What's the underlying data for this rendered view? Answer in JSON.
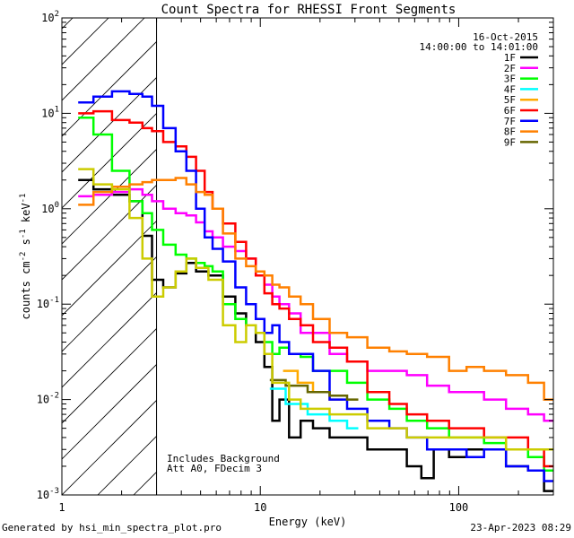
{
  "chart_data": {
    "type": "line",
    "title": "Count Spectra for RHESSI Front Segments",
    "xlabel": "Energy (keV)",
    "ylabel_main": "counts cm",
    "ylabel_units": [
      "-2",
      " s",
      "-1",
      " keV",
      "-1"
    ],
    "xscale": "log",
    "yscale": "log",
    "xlim": [
      1,
      300
    ],
    "ylim": [
      0.001,
      100
    ],
    "x_ticks": [
      {
        "value": 1,
        "label": "1"
      },
      {
        "value": 10,
        "label": "10"
      },
      {
        "value": 100,
        "label": "100"
      }
    ],
    "y_ticks": [
      {
        "value": 0.001,
        "base": "10",
        "exp": "-3"
      },
      {
        "value": 0.01,
        "base": "10",
        "exp": "-2"
      },
      {
        "value": 0.1,
        "base": "10",
        "exp": "-1"
      },
      {
        "value": 1,
        "base": "10",
        "exp": "0"
      },
      {
        "value": 10,
        "base": "10",
        "exp": "1"
      },
      {
        "value": 100,
        "base": "10",
        "exp": "2"
      }
    ],
    "date": "16-Oct-2015",
    "time_range": "14:00:00 to 14:01:00",
    "excluded_region_upper_keV": 3,
    "annotations": [
      "Includes Background",
      "Att A0, FDecim 3"
    ],
    "series": [
      {
        "name": "1F",
        "color": "#000000",
        "points": [
          [
            1.3,
            2.0
          ],
          [
            1.6,
            1.6
          ],
          [
            2.0,
            1.4
          ],
          [
            2.4,
            1.2
          ],
          [
            2.7,
            0.52
          ],
          [
            3.0,
            0.18
          ],
          [
            3.5,
            0.15
          ],
          [
            4.0,
            0.21
          ],
          [
            4.5,
            0.27
          ],
          [
            5.0,
            0.22
          ],
          [
            6.0,
            0.2
          ],
          [
            7.0,
            0.12
          ],
          [
            8.0,
            0.08
          ],
          [
            9.0,
            0.06
          ],
          [
            10,
            0.04
          ],
          [
            11,
            0.022
          ],
          [
            12,
            0.006
          ],
          [
            13,
            0.01
          ],
          [
            15,
            0.004
          ],
          [
            17,
            0.006
          ],
          [
            20,
            0.005
          ],
          [
            25,
            0.004
          ],
          [
            30,
            0.004
          ],
          [
            40,
            0.003
          ],
          [
            50,
            0.003
          ],
          [
            60,
            0.002
          ],
          [
            70,
            0.0015
          ],
          [
            80,
            0.003
          ],
          [
            100,
            0.0025
          ],
          [
            120,
            0.003
          ],
          [
            150,
            0.003
          ],
          [
            200,
            0.002
          ],
          [
            250,
            0.0018
          ],
          [
            290,
            0.0011
          ]
        ]
      },
      {
        "name": "2F",
        "color": "#ff00ff",
        "points": [
          [
            1.3,
            1.35
          ],
          [
            1.6,
            1.4
          ],
          [
            2.0,
            1.5
          ],
          [
            2.4,
            1.6
          ],
          [
            2.7,
            1.4
          ],
          [
            3.0,
            1.2
          ],
          [
            3.5,
            1.0
          ],
          [
            4.0,
            0.9
          ],
          [
            4.5,
            0.85
          ],
          [
            5.0,
            0.72
          ],
          [
            5.5,
            0.58
          ],
          [
            6.0,
            0.5
          ],
          [
            7.0,
            0.4
          ],
          [
            8.0,
            0.36
          ],
          [
            9.0,
            0.3
          ],
          [
            10,
            0.2
          ],
          [
            11,
            0.16
          ],
          [
            12,
            0.12
          ],
          [
            13,
            0.1
          ],
          [
            15,
            0.08
          ],
          [
            17,
            0.05
          ],
          [
            20,
            0.05
          ],
          [
            25,
            0.03
          ],
          [
            30,
            0.025
          ],
          [
            40,
            0.02
          ],
          [
            50,
            0.02
          ],
          [
            60,
            0.018
          ],
          [
            80,
            0.014
          ],
          [
            100,
            0.012
          ],
          [
            120,
            0.012
          ],
          [
            150,
            0.01
          ],
          [
            200,
            0.008
          ],
          [
            250,
            0.007
          ],
          [
            290,
            0.006
          ]
        ]
      },
      {
        "name": "3F",
        "color": "#00ff00",
        "points": [
          [
            1.3,
            9.0
          ],
          [
            1.6,
            6.0
          ],
          [
            2.0,
            2.5
          ],
          [
            2.4,
            1.2
          ],
          [
            2.7,
            0.9
          ],
          [
            3.0,
            0.6
          ],
          [
            3.5,
            0.42
          ],
          [
            4.0,
            0.33
          ],
          [
            4.5,
            0.3
          ],
          [
            5.0,
            0.27
          ],
          [
            5.5,
            0.25
          ],
          [
            6.0,
            0.22
          ],
          [
            7.0,
            0.1
          ],
          [
            8.0,
            0.07
          ],
          [
            9.0,
            0.06
          ],
          [
            10,
            0.05
          ],
          [
            11,
            0.04
          ],
          [
            12,
            0.03
          ],
          [
            13,
            0.035
          ],
          [
            15,
            0.03
          ],
          [
            17,
            0.028
          ],
          [
            20,
            0.02
          ],
          [
            25,
            0.02
          ],
          [
            30,
            0.015
          ],
          [
            40,
            0.01
          ],
          [
            50,
            0.008
          ],
          [
            60,
            0.006
          ],
          [
            80,
            0.005
          ],
          [
            100,
            0.004
          ],
          [
            120,
            0.004
          ],
          [
            150,
            0.0035
          ],
          [
            200,
            0.003
          ],
          [
            250,
            0.0025
          ],
          [
            290,
            0.0018
          ]
        ]
      },
      {
        "name": "4F",
        "color": "#00ffff",
        "points": [
          [
            12,
            0.013
          ],
          [
            15,
            0.009
          ],
          [
            20,
            0.007
          ],
          [
            25,
            0.006
          ],
          [
            30,
            0.005
          ]
        ]
      },
      {
        "name": "5F",
        "color": "#ffaa00",
        "points": [
          [
            14,
            0.02
          ],
          [
            17,
            0.015
          ],
          [
            20,
            0.012
          ],
          [
            25,
            0.01
          ]
        ]
      },
      {
        "name": "6F",
        "color": "#ff0000",
        "points": [
          [
            1.3,
            10.0
          ],
          [
            1.6,
            10.5
          ],
          [
            2.0,
            8.5
          ],
          [
            2.4,
            8.0
          ],
          [
            2.7,
            7.0
          ],
          [
            3.0,
            6.5
          ],
          [
            3.5,
            5.0
          ],
          [
            4.0,
            4.5
          ],
          [
            4.5,
            3.5
          ],
          [
            5.0,
            2.5
          ],
          [
            5.5,
            1.5
          ],
          [
            6.0,
            1.0
          ],
          [
            7.0,
            0.7
          ],
          [
            8.0,
            0.45
          ],
          [
            9.0,
            0.3
          ],
          [
            10,
            0.2
          ],
          [
            11,
            0.13
          ],
          [
            12,
            0.1
          ],
          [
            13,
            0.09
          ],
          [
            15,
            0.07
          ],
          [
            17,
            0.06
          ],
          [
            20,
            0.04
          ],
          [
            25,
            0.035
          ],
          [
            30,
            0.025
          ],
          [
            40,
            0.012
          ],
          [
            50,
            0.009
          ],
          [
            60,
            0.007
          ],
          [
            80,
            0.006
          ],
          [
            100,
            0.005
          ],
          [
            120,
            0.005
          ],
          [
            150,
            0.004
          ],
          [
            200,
            0.004
          ],
          [
            250,
            0.003
          ],
          [
            290,
            0.002
          ]
        ]
      },
      {
        "name": "7F",
        "color": "#0000ff",
        "points": [
          [
            1.3,
            13.0
          ],
          [
            1.6,
            15.0
          ],
          [
            2.0,
            17.0
          ],
          [
            2.4,
            16.0
          ],
          [
            2.7,
            15.0
          ],
          [
            3.0,
            12.0
          ],
          [
            3.5,
            7.0
          ],
          [
            4.0,
            4.0
          ],
          [
            4.5,
            2.5
          ],
          [
            5.0,
            1.0
          ],
          [
            5.5,
            0.5
          ],
          [
            6.0,
            0.38
          ],
          [
            7.0,
            0.28
          ],
          [
            8.0,
            0.15
          ],
          [
            9.0,
            0.1
          ],
          [
            10,
            0.07
          ],
          [
            11,
            0.05
          ],
          [
            12,
            0.06
          ],
          [
            13,
            0.04
          ],
          [
            15,
            0.03
          ],
          [
            17,
            0.03
          ],
          [
            20,
            0.02
          ],
          [
            25,
            0.01
          ],
          [
            30,
            0.008
          ],
          [
            40,
            0.006
          ],
          [
            50,
            0.005
          ],
          [
            60,
            0.004
          ],
          [
            80,
            0.003
          ],
          [
            100,
            0.003
          ],
          [
            120,
            0.0025
          ],
          [
            150,
            0.003
          ],
          [
            200,
            0.002
          ],
          [
            250,
            0.0018
          ],
          [
            290,
            0.0014
          ]
        ]
      },
      {
        "name": "8F",
        "color": "#ff8000",
        "points": [
          [
            1.3,
            1.1
          ],
          [
            1.6,
            1.5
          ],
          [
            2.0,
            1.7
          ],
          [
            2.4,
            1.8
          ],
          [
            2.7,
            1.9
          ],
          [
            3.0,
            2.0
          ],
          [
            3.5,
            2.0
          ],
          [
            4.0,
            2.1
          ],
          [
            4.5,
            1.8
          ],
          [
            5.0,
            1.5
          ],
          [
            5.5,
            1.4
          ],
          [
            6.0,
            1.0
          ],
          [
            7.0,
            0.55
          ],
          [
            8.0,
            0.3
          ],
          [
            9.0,
            0.25
          ],
          [
            10,
            0.22
          ],
          [
            11,
            0.2
          ],
          [
            12,
            0.16
          ],
          [
            13,
            0.15
          ],
          [
            15,
            0.12
          ],
          [
            17,
            0.1
          ],
          [
            20,
            0.07
          ],
          [
            25,
            0.05
          ],
          [
            30,
            0.045
          ],
          [
            40,
            0.035
          ],
          [
            50,
            0.032
          ],
          [
            60,
            0.03
          ],
          [
            80,
            0.028
          ],
          [
            100,
            0.02
          ],
          [
            120,
            0.022
          ],
          [
            150,
            0.02
          ],
          [
            200,
            0.018
          ],
          [
            250,
            0.015
          ],
          [
            290,
            0.01
          ]
        ]
      },
      {
        "name": "9F",
        "color": "#666600",
        "points": [
          [
            12,
            0.016
          ],
          [
            15,
            0.014
          ],
          [
            20,
            0.012
          ],
          [
            25,
            0.011
          ],
          [
            30,
            0.01
          ]
        ]
      },
      {
        "name": "1F-bg",
        "color": "#cccc00",
        "legend": false,
        "points": [
          [
            1.3,
            2.6
          ],
          [
            1.6,
            1.8
          ],
          [
            2.0,
            1.6
          ],
          [
            2.4,
            0.8
          ],
          [
            2.7,
            0.3
          ],
          [
            3.0,
            0.12
          ],
          [
            3.5,
            0.15
          ],
          [
            4.0,
            0.22
          ],
          [
            4.5,
            0.3
          ],
          [
            5.0,
            0.24
          ],
          [
            6.0,
            0.18
          ],
          [
            7.0,
            0.06
          ],
          [
            8.0,
            0.04
          ],
          [
            9.0,
            0.06
          ],
          [
            10,
            0.05
          ],
          [
            11,
            0.03
          ],
          [
            12,
            0.015
          ],
          [
            13,
            0.015
          ],
          [
            15,
            0.01
          ],
          [
            17,
            0.008
          ],
          [
            20,
            0.008
          ],
          [
            25,
            0.007
          ],
          [
            30,
            0.007
          ],
          [
            40,
            0.005
          ],
          [
            50,
            0.005
          ],
          [
            60,
            0.004
          ],
          [
            80,
            0.004
          ],
          [
            100,
            0.004
          ],
          [
            120,
            0.004
          ],
          [
            150,
            0.004
          ],
          [
            200,
            0.003
          ],
          [
            250,
            0.003
          ],
          [
            290,
            0.003
          ]
        ]
      }
    ]
  },
  "footer": {
    "left": "Generated by hsi_min_spectra_plot.pro",
    "right": "23-Apr-2023 08:29"
  }
}
